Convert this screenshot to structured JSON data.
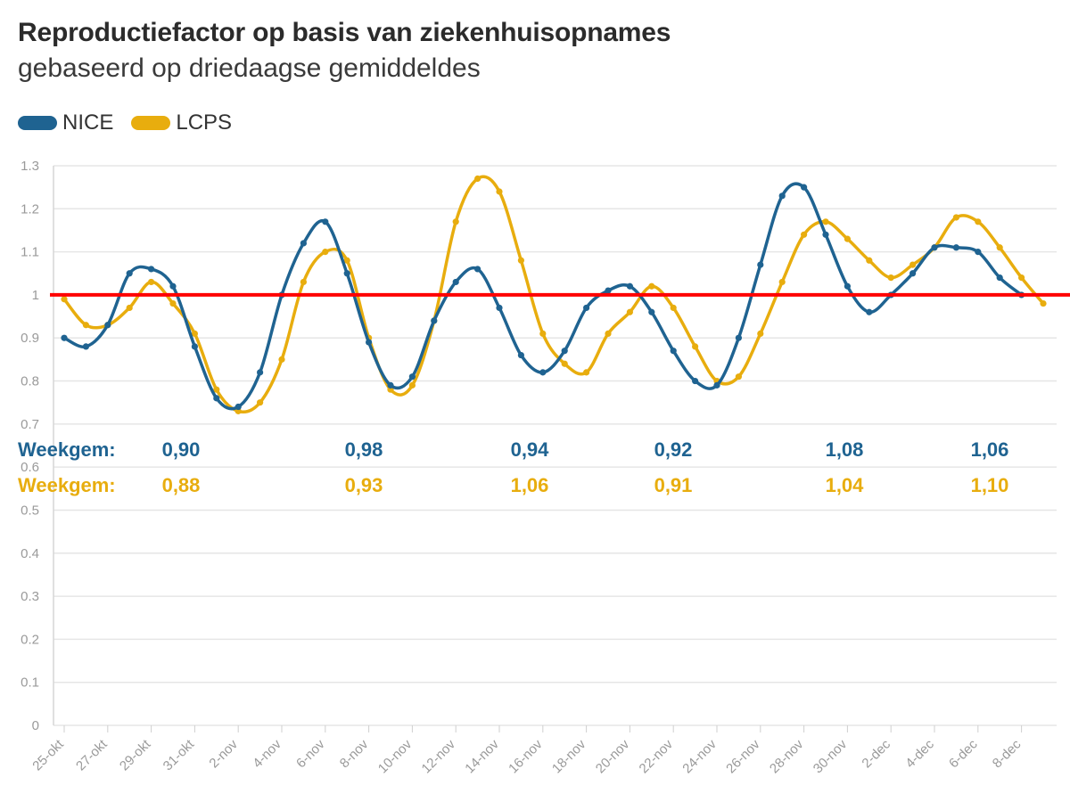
{
  "colors": {
    "nice": "#1f6391",
    "lcps": "#e8ad0e",
    "threshold": "#ff0000",
    "grid": "#e6e6e6"
  },
  "chart_data": {
    "type": "line",
    "title": "Reproductiefactor op basis van ziekenhuisopnames",
    "subtitle": "gebaseerd op driedaagse gemiddeldes",
    "legend_position": "top-left",
    "grid": true,
    "ylim": [
      0,
      1.3
    ],
    "yticks": [
      "0",
      "0.1",
      "0.2",
      "0.3",
      "0.4",
      "0.5",
      "0.6",
      "0.7",
      "0.8",
      "0.9",
      "1",
      "1.1",
      "1.2",
      "1.3"
    ],
    "xtick_labels": [
      "25-okt",
      "27-okt",
      "29-okt",
      "31-okt",
      "2-nov",
      "4-nov",
      "6-nov",
      "8-nov",
      "10-nov",
      "12-nov",
      "14-nov",
      "16-nov",
      "18-nov",
      "20-nov",
      "22-nov",
      "24-nov",
      "26-nov",
      "28-nov",
      "30-nov",
      "2-dec",
      "4-dec",
      "6-dec",
      "8-dec"
    ],
    "x": [
      "25-okt",
      "26-okt",
      "27-okt",
      "28-okt",
      "29-okt",
      "30-okt",
      "31-okt",
      "1-nov",
      "2-nov",
      "3-nov",
      "4-nov",
      "5-nov",
      "6-nov",
      "7-nov",
      "8-nov",
      "9-nov",
      "10-nov",
      "11-nov",
      "12-nov",
      "13-nov",
      "14-nov",
      "15-nov",
      "16-nov",
      "17-nov",
      "18-nov",
      "19-nov",
      "20-nov",
      "21-nov",
      "22-nov",
      "23-nov",
      "24-nov",
      "25-nov",
      "26-nov",
      "27-nov",
      "28-nov",
      "29-nov",
      "30-nov",
      "1-dec",
      "2-dec",
      "3-dec",
      "4-dec",
      "5-dec",
      "6-dec",
      "7-dec",
      "8-dec",
      "9-dec"
    ],
    "series": [
      {
        "name": "NICE",
        "values": [
          0.9,
          0.88,
          0.93,
          1.05,
          1.06,
          1.02,
          0.88,
          0.76,
          0.74,
          0.82,
          1.0,
          1.12,
          1.17,
          1.05,
          0.89,
          0.79,
          0.81,
          0.94,
          1.03,
          1.06,
          0.97,
          0.86,
          0.82,
          0.87,
          0.97,
          1.01,
          1.02,
          0.96,
          0.87,
          0.8,
          0.79,
          0.9,
          1.07,
          1.23,
          1.25,
          1.14,
          1.02,
          0.96,
          1.0,
          1.05,
          1.11,
          1.11,
          1.1,
          1.04,
          1.0,
          null
        ]
      },
      {
        "name": "LCPS",
        "values": [
          0.99,
          0.93,
          0.93,
          0.97,
          1.03,
          0.98,
          0.91,
          0.78,
          0.73,
          0.75,
          0.85,
          1.03,
          1.1,
          1.08,
          0.9,
          0.78,
          0.79,
          0.94,
          1.17,
          1.27,
          1.24,
          1.08,
          0.91,
          0.84,
          0.82,
          0.91,
          0.96,
          1.02,
          0.97,
          0.88,
          0.8,
          0.81,
          0.91,
          1.03,
          1.14,
          1.17,
          1.13,
          1.08,
          1.04,
          1.07,
          1.11,
          1.18,
          1.17,
          1.11,
          1.04,
          0.98
        ]
      }
    ],
    "reference_line": {
      "y": 1
    },
    "annotations": {
      "nice": {
        "label": "Weekgem:",
        "values": [
          "0,90",
          "0,98",
          "0,94",
          "0,92",
          "1,08",
          "1,06"
        ]
      },
      "lcps": {
        "label": "Weekgem:",
        "values": [
          "0,88",
          "0,93",
          "1,06",
          "0,91",
          "1,04",
          "1,10"
        ]
      }
    }
  }
}
